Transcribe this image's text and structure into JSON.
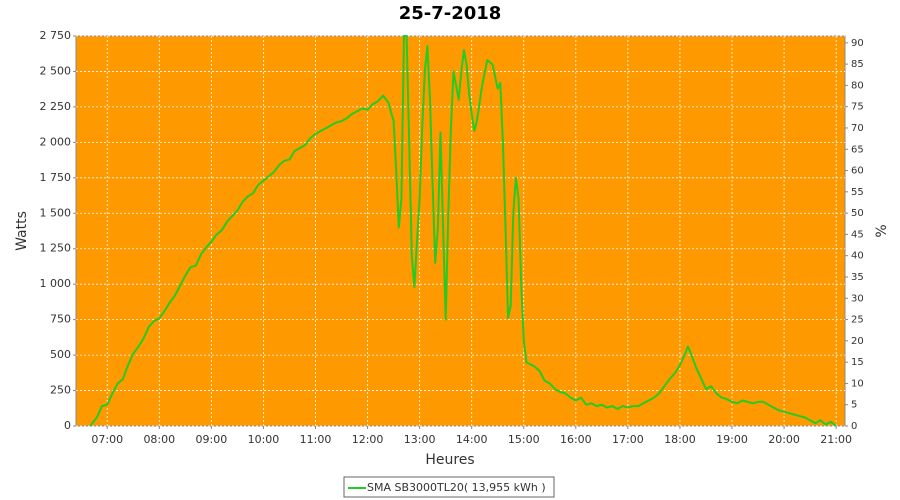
{
  "chart_data": {
    "type": "line",
    "title": "25-7-2018",
    "x_label": "Heures",
    "y_label": "Watts",
    "y2_label": "%",
    "xlim": [
      6.4,
      21.17
    ],
    "ylim": [
      0,
      2750
    ],
    "y2lim": [
      0,
      91.6
    ],
    "xticks": [
      {
        "value": 7,
        "label": "07:00"
      },
      {
        "value": 8,
        "label": "08:00"
      },
      {
        "value": 9,
        "label": "09:00"
      },
      {
        "value": 10,
        "label": "10:00"
      },
      {
        "value": 11,
        "label": "11:00"
      },
      {
        "value": 12,
        "label": "12:00"
      },
      {
        "value": 13,
        "label": "13:00"
      },
      {
        "value": 14,
        "label": "14:00"
      },
      {
        "value": 15,
        "label": "15:00"
      },
      {
        "value": 16,
        "label": "16:00"
      },
      {
        "value": 17,
        "label": "17:00"
      },
      {
        "value": 18,
        "label": "18:00"
      },
      {
        "value": 19,
        "label": "19:00"
      },
      {
        "value": 20,
        "label": "20:00"
      },
      {
        "value": 21,
        "label": "21:00"
      }
    ],
    "yticks": [
      0,
      250,
      500,
      750,
      {
        "value": 1000,
        "label": "1 000"
      },
      {
        "value": 1250,
        "label": "1 250"
      },
      {
        "value": 1500,
        "label": "1 500"
      },
      {
        "value": 1750,
        "label": "1 750"
      },
      {
        "value": 2000,
        "label": "2 000"
      },
      {
        "value": 2250,
        "label": "2 250"
      },
      {
        "value": 2500,
        "label": "2 500"
      },
      {
        "value": 2750,
        "label": "2 750"
      }
    ],
    "y2ticks": [
      0,
      5,
      10,
      15,
      20,
      25,
      30,
      35,
      40,
      45,
      50,
      55,
      60,
      65,
      70,
      75,
      80,
      85,
      90
    ],
    "grid": true,
    "background": "#ff9900",
    "legend": "bottom",
    "x": [
      6.67,
      6.8,
      6.9,
      7.0,
      7.1,
      7.2,
      7.3,
      7.4,
      7.5,
      7.6,
      7.7,
      7.8,
      7.9,
      8.0,
      8.1,
      8.2,
      8.3,
      8.4,
      8.5,
      8.6,
      8.7,
      8.8,
      8.9,
      9.0,
      9.1,
      9.2,
      9.3,
      9.4,
      9.5,
      9.6,
      9.7,
      9.8,
      9.9,
      10.0,
      10.1,
      10.2,
      10.3,
      10.4,
      10.5,
      10.6,
      10.7,
      10.8,
      10.9,
      11.0,
      11.1,
      11.2,
      11.3,
      11.4,
      11.5,
      11.6,
      11.7,
      11.8,
      11.9,
      12.0,
      12.1,
      12.2,
      12.3,
      12.4,
      12.5,
      12.55,
      12.6,
      12.65,
      12.7,
      12.75,
      12.8,
      12.85,
      12.9,
      12.95,
      13.0,
      13.05,
      13.1,
      13.15,
      13.2,
      13.25,
      13.3,
      13.35,
      13.4,
      13.45,
      13.5,
      13.55,
      13.6,
      13.65,
      13.7,
      13.75,
      13.8,
      13.85,
      13.9,
      13.95,
      14.0,
      14.05,
      14.1,
      14.2,
      14.3,
      14.4,
      14.5,
      14.55,
      14.6,
      14.65,
      14.7,
      14.75,
      14.8,
      14.85,
      14.9,
      14.95,
      15.0,
      15.05,
      15.2,
      15.3,
      15.4,
      15.5,
      15.6,
      15.7,
      15.8,
      15.9,
      16.0,
      16.1,
      16.2,
      16.3,
      16.4,
      16.5,
      16.6,
      16.7,
      16.8,
      16.9,
      17.0,
      17.1,
      17.2,
      17.3,
      17.4,
      17.5,
      17.6,
      17.7,
      17.8,
      17.9,
      18.0,
      18.1,
      18.15,
      18.2,
      18.3,
      18.4,
      18.5,
      18.6,
      18.7,
      18.8,
      18.9,
      19.0,
      19.1,
      19.2,
      19.3,
      19.4,
      19.5,
      19.6,
      19.7,
      19.8,
      19.9,
      20.0,
      20.1,
      20.2,
      20.3,
      20.4,
      20.5,
      20.6,
      20.7,
      20.8,
      20.9,
      21.0
    ],
    "series": [
      {
        "name": "SMA SB3000TL20( 13,955 kWh )",
        "color": "#22cc22",
        "values": [
          0,
          60,
          140,
          150,
          230,
          300,
          330,
          430,
          510,
          560,
          620,
          700,
          740,
          760,
          810,
          870,
          920,
          990,
          1060,
          1120,
          1130,
          1210,
          1260,
          1300,
          1350,
          1380,
          1440,
          1480,
          1520,
          1580,
          1620,
          1640,
          1700,
          1730,
          1760,
          1790,
          1840,
          1870,
          1880,
          1940,
          1960,
          1980,
          2030,
          2060,
          2080,
          2100,
          2120,
          2140,
          2150,
          2170,
          2200,
          2220,
          2240,
          2230,
          2270,
          2290,
          2330,
          2280,
          2150,
          1800,
          1400,
          1600,
          2750,
          2750,
          2000,
          1200,
          980,
          1300,
          1600,
          2100,
          2500,
          2680,
          2300,
          1700,
          1150,
          1400,
          2070,
          1400,
          750,
          1500,
          2100,
          2500,
          2400,
          2300,
          2500,
          2650,
          2550,
          2350,
          2200,
          2080,
          2150,
          2400,
          2580,
          2550,
          2380,
          2420,
          2000,
          1400,
          760,
          850,
          1500,
          1750,
          1600,
          1000,
          600,
          450,
          420,
          390,
          320,
          300,
          260,
          240,
          230,
          200,
          180,
          200,
          150,
          160,
          140,
          150,
          130,
          140,
          120,
          140,
          130,
          140,
          140,
          160,
          180,
          200,
          230,
          280,
          330,
          370,
          430,
          510,
          560,
          520,
          420,
          340,
          260,
          280,
          230,
          200,
          190,
          170,
          160,
          180,
          170,
          160,
          170,
          170,
          150,
          130,
          110,
          100,
          90,
          80,
          70,
          60,
          40,
          20,
          40,
          10,
          30,
          0
        ]
      }
    ]
  }
}
